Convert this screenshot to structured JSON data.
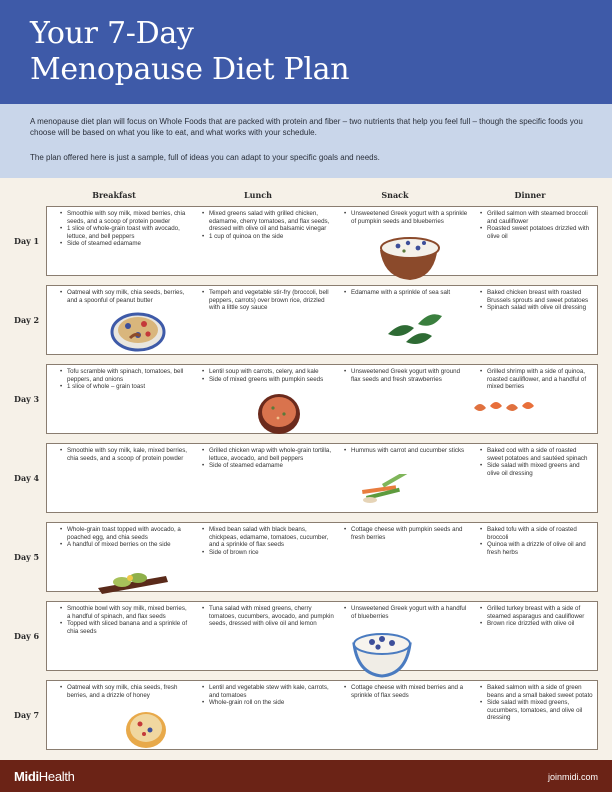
{
  "header": {
    "title_line1": "Your 7-Day",
    "title_line2": "Menopause Diet Plan"
  },
  "intro": {
    "p1": "A menopause diet plan will focus on Whole Foods that are packed with protein and fiber – two nutrients that help you feel full – though the specific foods you choose will be based on what you like to eat, and what works with your schedule.",
    "p2": "The plan offered here is just a sample, full of ideas you can adapt to your specific goals and needs."
  },
  "columns": [
    "Breakfast",
    "Lunch",
    "Snack",
    "Dinner"
  ],
  "days": [
    {
      "label": "Day 1",
      "breakfast": [
        "Smoothie with soy milk, mixed berries, chia seeds, and a scoop of protein powder",
        "1 slice of whole-grain toast with avocado, lettuce, and bell peppers",
        "Side of steamed edamame"
      ],
      "lunch": [
        "Mixed greens salad with grilled chicken, edamame, cherry tomatoes, and flax seeds, dressed with olive oil and balsamic vinegar",
        "1 cup of quinoa on the side"
      ],
      "snack": [
        "Unsweetened Greek yogurt with a sprinkle of pumpkin seeds and blueberries"
      ],
      "dinner": [
        "Grilled salmon with steamed broccoli and cauliflower",
        "Roasted sweet potatoes drizzled with olive oil"
      ]
    },
    {
      "label": "Day 2",
      "breakfast": [
        "Oatmeal with soy milk, chia seeds, berries, and a spoonful of peanut butter"
      ],
      "lunch": [
        "Tempeh and vegetable stir-fry (broccoli, bell peppers, carrots) over brown rice, drizzled with a little soy sauce"
      ],
      "snack": [
        "Edamame with a sprinkle of sea salt"
      ],
      "dinner": [
        "Baked chicken breast with roasted Brussels sprouts and sweet potatoes",
        "Spinach salad with olive oil dressing"
      ]
    },
    {
      "label": "Day 3",
      "breakfast": [
        "Tofu scramble with spinach, tomatoes, bell peppers, and onions",
        "1 slice of whole – grain toast"
      ],
      "lunch": [
        "Lentil soup with carrots, celery, and kale",
        "Side of mixed greens with pumpkin seeds"
      ],
      "snack": [
        "Unsweetened Greek yogurt with ground flax seeds and fresh strawberries"
      ],
      "dinner": [
        "Grilled shrimp with a side of quinoa, roasted cauliflower, and a handful of mixed berries"
      ]
    },
    {
      "label": "Day 4",
      "breakfast": [
        "Smoothie with soy milk, kale, mixed berries, chia seeds, and a scoop of protein powder"
      ],
      "lunch": [
        "Grilled chicken wrap with whole-grain tortilla, lettuce, avocado, and bell peppers",
        "Side of steamed edamame"
      ],
      "snack": [
        "Hummus with carrot and cucumber sticks"
      ],
      "dinner": [
        "Baked cod with a side of roasted sweet potatoes and sautéed spinach",
        "Side salad with mixed greens and olive oil dressing"
      ]
    },
    {
      "label": "Day 5",
      "breakfast": [
        "Whole-grain toast topped with avocado, a poached egg, and chia seeds",
        "A handful of mixed berries on the side"
      ],
      "lunch": [
        "Mixed bean salad with black beans, chickpeas, edamame, tomatoes, cucumber, and a sprinkle of flax seeds",
        "Side of brown rice"
      ],
      "snack": [
        "Cottage cheese with pumpkin seeds and fresh berries"
      ],
      "dinner": [
        "Baked tofu with a side of roasted broccoli",
        "Quinoa with a drizzle of olive oil and fresh herbs"
      ]
    },
    {
      "label": "Day 6",
      "breakfast": [
        "Smoothie bowl with soy milk, mixed berries, a handful of spinach, and flax seeds",
        "Topped with sliced banana and a sprinkle of chia seeds"
      ],
      "lunch": [
        "Tuna salad with mixed greens, cherry tomatoes, cucumbers, avocado, and pumpkin seeds, dressed with olive oil and lemon"
      ],
      "snack": [
        "Unsweetened Greek yogurt with a handful of blueberries"
      ],
      "dinner": [
        "Grilled turkey breast with a side of steamed asparagus and cauliflower",
        "Brown rice drizzled with olive oil"
      ]
    },
    {
      "label": "Day 7",
      "breakfast": [
        "Oatmeal with soy milk, chia seeds, fresh berries, and a drizzle of honey"
      ],
      "lunch": [
        "Lentil and vegetable stew with kale, carrots, and tomatoes",
        "Whole-grain roll on the side"
      ],
      "snack": [
        "Cottage cheese with mixed berries and a sprinkle of flax seeds"
      ],
      "dinner": [
        "Baked salmon with a side of green beans and a small baked sweet potato",
        "Side salad with mixed greens, cucumbers, tomatoes, and olive oil dressing"
      ]
    }
  ],
  "illustrations": [
    "yogurt-bowl-icon",
    "oatmeal-bowl-icon",
    "edamame-icon",
    "lentil-soup-icon",
    "shrimp-icon",
    "veggie-sticks-icon",
    "avocado-toast-icon",
    "blueberry-yogurt-icon",
    "honey-oatmeal-icon"
  ],
  "footer": {
    "brand_bold": "Midi",
    "brand_rest": "Health",
    "url": "joinmidi.com"
  }
}
